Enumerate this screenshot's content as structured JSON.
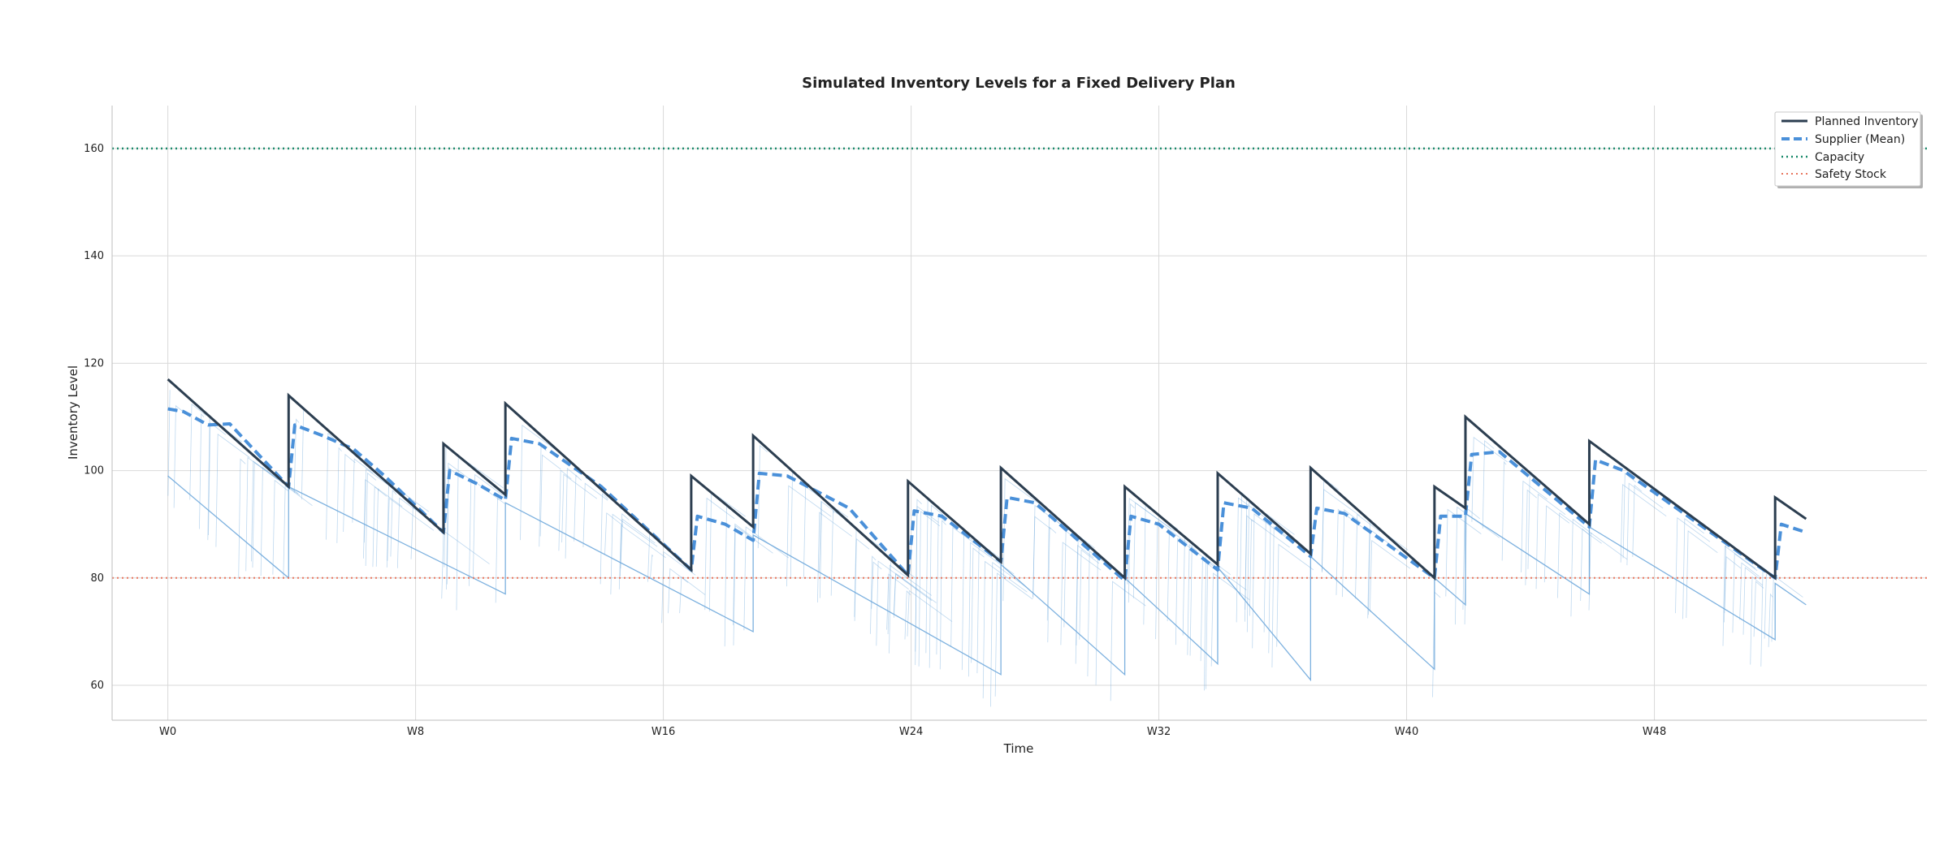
{
  "chart_data": {
    "type": "line",
    "title": "Simulated Inventory Levels for a Fixed Delivery Plan",
    "xlabel": "Time",
    "ylabel": "Inventory Level",
    "xlim": [
      -1.8,
      56.8
    ],
    "ylim": [
      53.5,
      168
    ],
    "xticks": [
      {
        "value": 0,
        "label": "W0"
      },
      {
        "value": 8,
        "label": "W8"
      },
      {
        "value": 16,
        "label": "W16"
      },
      {
        "value": 24,
        "label": "W24"
      },
      {
        "value": 32,
        "label": "W32"
      },
      {
        "value": 40,
        "label": "W40"
      },
      {
        "value": 48,
        "label": "W48"
      }
    ],
    "yticks": [
      60,
      80,
      100,
      120,
      140,
      160
    ],
    "grid": true,
    "legend": {
      "position": "top-right"
    },
    "capacity": 160,
    "safety_stock": 80,
    "colors": {
      "planned": "#2c3e50",
      "supplier_mean": "#4a90d9",
      "supplier_runs": "#6fa8dc",
      "capacity": "#1a8a6b",
      "safety": "#e8765f",
      "grid": "#d9d9d9"
    },
    "series": [
      {
        "name": "Planned Inventory",
        "style": "solid",
        "points": [
          [
            0,
            117
          ],
          [
            3.9,
            97
          ],
          [
            3.9,
            114
          ],
          [
            8.9,
            88.5
          ],
          [
            8.9,
            105
          ],
          [
            10.9,
            95.5
          ],
          [
            10.9,
            112.5
          ],
          [
            16.9,
            81.5
          ],
          [
            16.9,
            99
          ],
          [
            18.9,
            89.5
          ],
          [
            18.9,
            106.5
          ],
          [
            23.9,
            80.5
          ],
          [
            23.9,
            98
          ],
          [
            26.9,
            83
          ],
          [
            26.9,
            100.5
          ],
          [
            30.9,
            80
          ],
          [
            30.9,
            97
          ],
          [
            33.9,
            82.5
          ],
          [
            33.9,
            99.5
          ],
          [
            36.9,
            84.5
          ],
          [
            36.9,
            100.5
          ],
          [
            40.9,
            80
          ],
          [
            40.9,
            97
          ],
          [
            41.9,
            93
          ],
          [
            41.9,
            110
          ],
          [
            45.9,
            90
          ],
          [
            45.9,
            105.5
          ],
          [
            51.9,
            80
          ],
          [
            51.9,
            95
          ],
          [
            52.9,
            91
          ]
        ]
      },
      {
        "name": "Supplier (Mean)",
        "style": "dashed",
        "points": [
          [
            0,
            111.5
          ],
          [
            0.5,
            111
          ],
          [
            1.3,
            108.5
          ],
          [
            2,
            108.7
          ],
          [
            3.9,
            97
          ],
          [
            4.1,
            108.5
          ],
          [
            5,
            106.5
          ],
          [
            6,
            104
          ],
          [
            7,
            99
          ],
          [
            8.9,
            88.5
          ],
          [
            9.1,
            100
          ],
          [
            10,
            97.5
          ],
          [
            10.9,
            94.5
          ],
          [
            11.1,
            106
          ],
          [
            12,
            105
          ],
          [
            14,
            97
          ],
          [
            16.9,
            81.5
          ],
          [
            17.1,
            91.5
          ],
          [
            18,
            90
          ],
          [
            18.9,
            87
          ],
          [
            19.1,
            99.5
          ],
          [
            20,
            99
          ],
          [
            22,
            93
          ],
          [
            23.9,
            80.5
          ],
          [
            24.1,
            92.5
          ],
          [
            25,
            91.5
          ],
          [
            26.9,
            83
          ],
          [
            27.1,
            95
          ],
          [
            28,
            94
          ],
          [
            30.9,
            79.5
          ],
          [
            31.1,
            91.5
          ],
          [
            32,
            90
          ],
          [
            33.9,
            81.5
          ],
          [
            34.1,
            94
          ],
          [
            35,
            93
          ],
          [
            36.9,
            84
          ],
          [
            37.1,
            93
          ],
          [
            38,
            92
          ],
          [
            40.9,
            80
          ],
          [
            41.1,
            91.5
          ],
          [
            41.9,
            91.5
          ],
          [
            42.1,
            103
          ],
          [
            43,
            103.5
          ],
          [
            45.9,
            89.5
          ],
          [
            46.1,
            102
          ],
          [
            47,
            100
          ],
          [
            51.9,
            80
          ],
          [
            52.1,
            90
          ],
          [
            52.9,
            88.5
          ]
        ]
      },
      {
        "name": "Capacity",
        "style": "dotted",
        "value": 160
      },
      {
        "name": "Safety Stock",
        "style": "dotted",
        "value": 80
      }
    ],
    "supplier_run_envelope": {
      "lower": [
        [
          0,
          99
        ],
        [
          3.9,
          80
        ],
        [
          3.9,
          97
        ],
        [
          10.9,
          77
        ],
        [
          10.9,
          94
        ],
        [
          18.9,
          70
        ],
        [
          18.9,
          88
        ],
        [
          26.9,
          62
        ],
        [
          26.9,
          82.5
        ],
        [
          30.9,
          62
        ],
        [
          30.9,
          80
        ],
        [
          33.9,
          64
        ],
        [
          33.9,
          82
        ],
        [
          36.9,
          61
        ],
        [
          36.9,
          84
        ],
        [
          40.9,
          63
        ],
        [
          40.9,
          80
        ],
        [
          41.9,
          75
        ],
        [
          41.9,
          92
        ],
        [
          45.9,
          77
        ],
        [
          45.9,
          89.5
        ],
        [
          51.9,
          68.5
        ],
        [
          51.9,
          79
        ],
        [
          52.9,
          75
        ]
      ]
    }
  }
}
